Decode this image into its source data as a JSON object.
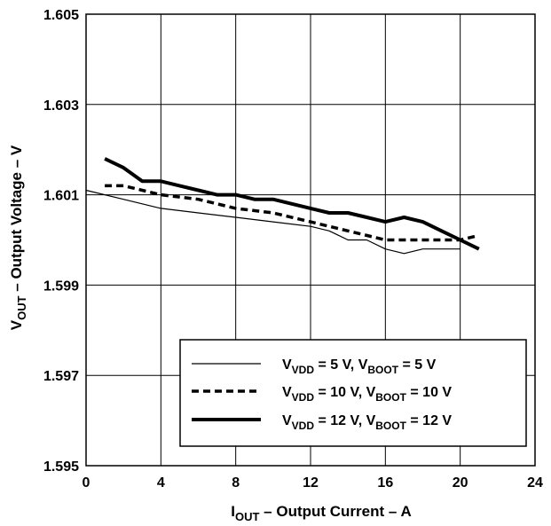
{
  "chart_data": {
    "type": "line",
    "xlim": [
      0,
      24
    ],
    "ylim": [
      1.595,
      1.605
    ],
    "x_ticks": [
      0,
      4,
      8,
      12,
      16,
      20,
      24
    ],
    "y_ticks": [
      1.595,
      1.597,
      1.599,
      1.601,
      1.603,
      1.605
    ],
    "x_tick_labels": [
      "0",
      "4",
      "8",
      "12",
      "16",
      "20",
      "24"
    ],
    "y_tick_labels": [
      "1.595",
      "1.597",
      "1.599",
      "1.601",
      "1.603",
      "1.605"
    ],
    "xlabel": {
      "main": "I",
      "sub": "OUT",
      "rest": " – Output Current  – A"
    },
    "ylabel": {
      "main": "V",
      "sub": "OUT",
      "rest": " – Output Voltage – V"
    },
    "grid": true,
    "legend_position": "bottom-right",
    "series": [
      {
        "legend": [
          {
            "t": "V",
            "s": ""
          },
          {
            "t": "VDD",
            "s": "sub"
          },
          {
            "t": " = 5 V, V",
            "s": ""
          },
          {
            "t": "BOOT",
            "s": "sub"
          },
          {
            "t": " = 5 V",
            "s": ""
          }
        ],
        "style": "thin",
        "x": [
          0,
          2,
          4,
          6,
          8,
          10,
          12,
          13,
          14,
          15,
          16,
          17,
          18,
          19,
          20
        ],
        "y": [
          1.6011,
          1.6009,
          1.6007,
          1.6006,
          1.6005,
          1.6004,
          1.6003,
          1.6002,
          1.6,
          1.6,
          1.5998,
          1.5997,
          1.5998,
          1.5998,
          1.5998
        ]
      },
      {
        "legend": [
          {
            "t": "V",
            "s": ""
          },
          {
            "t": "VDD",
            "s": "sub"
          },
          {
            "t": " = 10 V, V",
            "s": ""
          },
          {
            "t": "BOOT",
            "s": "sub"
          },
          {
            "t": " = 10 V",
            "s": ""
          }
        ],
        "style": "dashed",
        "x": [
          1,
          2,
          3,
          4,
          6,
          8,
          10,
          12,
          14,
          16,
          17,
          18,
          19,
          20,
          21
        ],
        "y": [
          1.6012,
          1.6012,
          1.6011,
          1.601,
          1.6009,
          1.6007,
          1.6006,
          1.6004,
          1.6002,
          1.6,
          1.6,
          1.6,
          1.6,
          1.6,
          1.6001
        ]
      },
      {
        "legend": [
          {
            "t": "V",
            "s": ""
          },
          {
            "t": "VDD",
            "s": "sub"
          },
          {
            "t": " = 12 V, V",
            "s": ""
          },
          {
            "t": "BOOT",
            "s": "sub"
          },
          {
            "t": " = 12 V",
            "s": ""
          }
        ],
        "style": "thick",
        "x": [
          1,
          2,
          3,
          4,
          5,
          6,
          7,
          8,
          9,
          10,
          11,
          12,
          13,
          14,
          15,
          16,
          17,
          18,
          19,
          20,
          21
        ],
        "y": [
          1.6018,
          1.6016,
          1.6013,
          1.6013,
          1.6012,
          1.6011,
          1.601,
          1.601,
          1.6009,
          1.6009,
          1.6008,
          1.6007,
          1.6006,
          1.6006,
          1.6005,
          1.6004,
          1.6005,
          1.6004,
          1.6002,
          1.6,
          1.5998
        ]
      }
    ]
  }
}
